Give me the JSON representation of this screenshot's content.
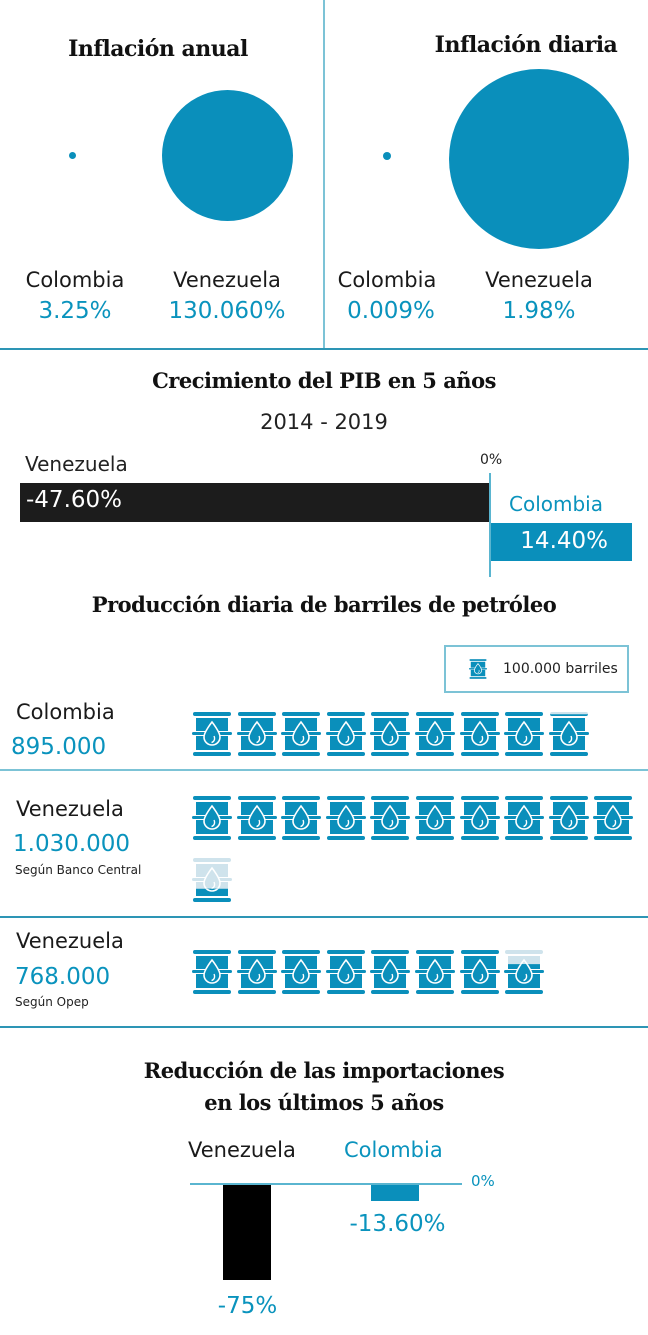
{
  "colors": {
    "accent": "#0a8fbb",
    "dark": "#1c1c1c",
    "faded": "#cfe3ec",
    "divider": "#7cc3d6"
  },
  "inflation": {
    "annual": {
      "title": "Inflación anual",
      "colombia": {
        "name": "Colombia",
        "value_label": "3.25%",
        "value": 3.25
      },
      "venezuela": {
        "name": "Venezuela",
        "value_label": "130.060%",
        "value": 130060
      }
    },
    "daily": {
      "title": "Inflación diaria",
      "colombia": {
        "name": "Colombia",
        "value_label": "0.009%",
        "value": 0.009
      },
      "venezuela": {
        "name": "Venezuela",
        "value_label": "1.98%",
        "value": 1.98
      }
    }
  },
  "pib": {
    "title": "Crecimiento del PIB en 5 años",
    "subtitle": "2014 - 2019",
    "zero_label": "0%",
    "venezuela": {
      "name": "Venezuela",
      "value_label": "-47.60%"
    },
    "colombia": {
      "name": "Colombia",
      "value_label": "14.40%"
    }
  },
  "barrels": {
    "title": "Producción diaria de barriles de petróleo",
    "legend_label": "100.000 barriles",
    "rows": [
      {
        "name": "Colombia",
        "value_label": "895.000",
        "source": ""
      },
      {
        "name": "Venezuela",
        "value_label": "1.030.000",
        "source": "Según Banco Central"
      },
      {
        "name": "Venezuela",
        "value_label": "768.000",
        "source": "Según Opep"
      }
    ]
  },
  "imports": {
    "title_line1": "Reducción de las importaciones",
    "title_line2": "en los últimos 5 años",
    "zero_label": "0%",
    "venezuela": {
      "name": "Venezuela",
      "value_label": "-75%"
    },
    "colombia": {
      "name": "Colombia",
      "value_label": "-13.60%"
    }
  },
  "chart_data": [
    {
      "type": "bubble",
      "title": "Inflación anual",
      "categories": [
        "Colombia",
        "Venezuela"
      ],
      "values": [
        3.25,
        130060
      ],
      "unit": "%"
    },
    {
      "type": "bubble",
      "title": "Inflación diaria",
      "categories": [
        "Colombia",
        "Venezuela"
      ],
      "values": [
        0.009,
        1.98
      ],
      "unit": "%"
    },
    {
      "type": "bar",
      "orientation": "horizontal",
      "title": "Crecimiento del PIB en 5 años",
      "subtitle": "2014 - 2019",
      "categories": [
        "Venezuela",
        "Colombia"
      ],
      "values": [
        -47.6,
        14.4
      ],
      "baseline_label": "0%",
      "unit": "%"
    },
    {
      "type": "pictogram",
      "title": "Producción diaria de barriles de petróleo",
      "unit_per_icon": 100000,
      "legend": "100.000 barriles",
      "categories": [
        "Colombia",
        "Venezuela (Según Banco Central)",
        "Venezuela (Según Opep)"
      ],
      "values": [
        895000,
        1030000,
        768000
      ]
    },
    {
      "type": "bar",
      "orientation": "vertical",
      "title": "Reducción de las importaciones en los últimos 5 años",
      "categories": [
        "Venezuela",
        "Colombia"
      ],
      "values": [
        -75,
        -13.6
      ],
      "baseline_label": "0%",
      "unit": "%"
    }
  ]
}
